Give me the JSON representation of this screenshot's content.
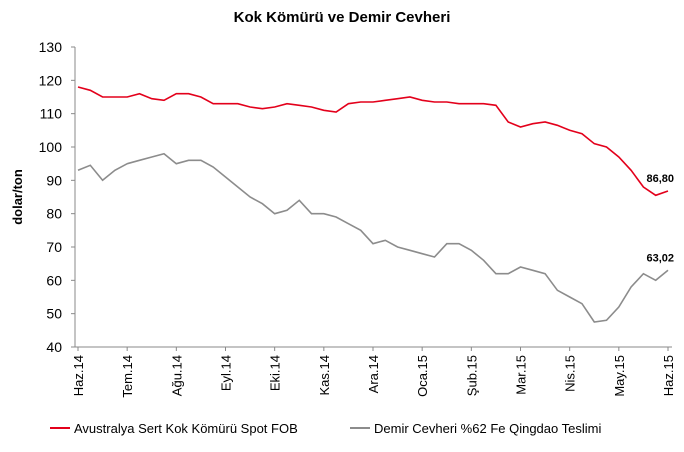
{
  "chart_data": {
    "type": "line",
    "title": "Kok Kömürü ve Demir Cevheri",
    "y_label": "dolar/ton",
    "categories": [
      "Haz.14",
      null,
      null,
      null,
      "Tem.14",
      null,
      null,
      null,
      "Ağu.14",
      null,
      null,
      null,
      "Eyl.14",
      null,
      null,
      null,
      "Eki.14",
      null,
      null,
      null,
      "Kas.14",
      null,
      null,
      null,
      "Ara.14",
      null,
      null,
      null,
      "Oca.15",
      null,
      null,
      null,
      "Şub.15",
      null,
      null,
      null,
      "Mar.15",
      null,
      null,
      null,
      "Nis.15",
      null,
      null,
      null,
      "May.15",
      null,
      null,
      null,
      "Haz.15"
    ],
    "series": [
      {
        "name": "Avustralya Sert Kok Kömürü Spot FOB",
        "color": "#e3001b",
        "values": [
          118,
          117,
          115,
          115,
          115,
          116,
          114.5,
          114,
          116,
          116,
          115,
          113,
          113,
          113,
          112,
          111.5,
          112,
          113,
          112.5,
          112,
          111,
          110.5,
          113,
          113.5,
          113.5,
          114,
          114.5,
          115,
          114,
          113.5,
          113.5,
          113,
          113,
          113,
          112.5,
          107.5,
          106,
          107,
          107.5,
          106.5,
          105,
          104,
          101,
          100,
          97,
          93,
          88,
          85.5,
          86.8
        ],
        "value_labels": [
          null,
          null,
          null,
          null,
          null,
          null,
          null,
          null,
          null,
          null,
          null,
          null,
          null,
          null,
          null,
          null,
          null,
          null,
          null,
          null,
          null,
          null,
          null,
          null,
          null,
          null,
          null,
          null,
          null,
          null,
          null,
          null,
          null,
          null,
          null,
          null,
          null,
          null,
          null,
          null,
          null,
          null,
          null,
          null,
          null,
          null,
          null,
          null,
          "86,80"
        ]
      },
      {
        "name": "Demir Cevheri %62 Fe Qingdao Teslimi",
        "color": "#8c8c8c",
        "values": [
          93,
          94.5,
          90,
          93,
          95,
          96,
          97,
          98,
          95,
          96,
          96,
          94,
          91,
          88,
          85,
          83,
          80,
          81,
          84,
          80,
          80,
          79,
          77,
          75,
          71,
          72,
          70,
          69,
          68,
          67,
          71,
          71,
          69,
          66,
          62,
          62,
          64,
          63,
          62,
          57,
          55,
          53,
          47.5,
          48,
          52,
          58,
          62,
          60,
          63.02
        ],
        "value_labels": [
          null,
          null,
          null,
          null,
          null,
          null,
          null,
          null,
          null,
          null,
          null,
          null,
          null,
          null,
          null,
          null,
          null,
          null,
          null,
          null,
          null,
          null,
          null,
          null,
          null,
          null,
          null,
          null,
          null,
          null,
          null,
          null,
          null,
          null,
          null,
          null,
          null,
          null,
          null,
          null,
          null,
          null,
          null,
          null,
          null,
          null,
          null,
          null,
          "63,02"
        ]
      }
    ],
    "ylim": [
      40,
      130
    ],
    "yticks": [
      40,
      50,
      60,
      70,
      80,
      90,
      100,
      110,
      120,
      130
    ],
    "grid": false
  }
}
